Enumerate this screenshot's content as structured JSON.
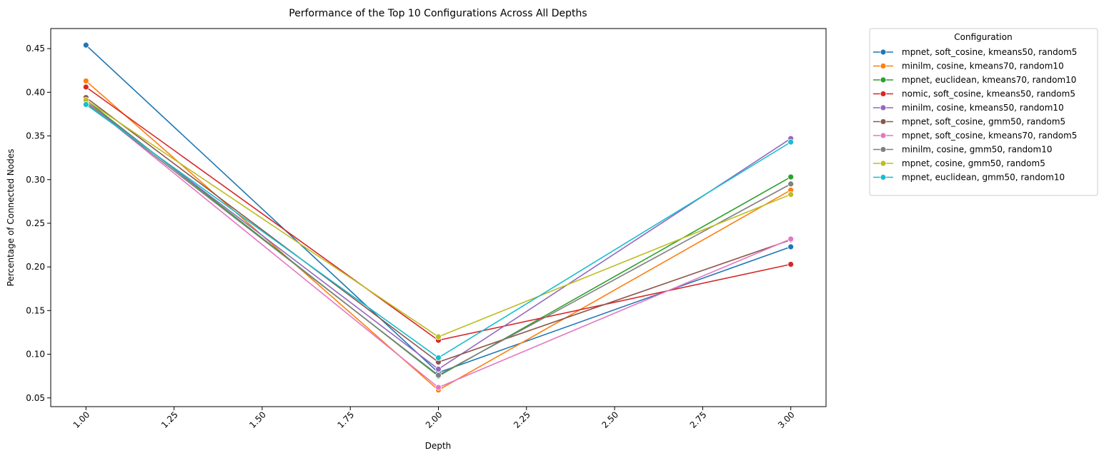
{
  "chart_data": {
    "type": "line",
    "title": "Performance of the Top 10 Configurations Across All Depths",
    "xlabel": "Depth",
    "ylabel": "Percentage of Connected Nodes",
    "x": [
      1.0,
      2.0,
      3.0
    ],
    "xlim": [
      0.9,
      3.1
    ],
    "ylim": [
      0.04,
      0.473
    ],
    "xticks": [
      "1.00",
      "1.25",
      "1.50",
      "1.75",
      "2.00",
      "2.25",
      "2.50",
      "2.75",
      "3.00"
    ],
    "xtick_values": [
      1.0,
      1.25,
      1.5,
      1.75,
      2.0,
      2.25,
      2.5,
      2.75,
      3.0
    ],
    "yticks": [
      "0.05",
      "0.10",
      "0.15",
      "0.20",
      "0.25",
      "0.30",
      "0.35",
      "0.40",
      "0.45"
    ],
    "ytick_values": [
      0.05,
      0.1,
      0.15,
      0.2,
      0.25,
      0.3,
      0.35,
      0.4,
      0.45
    ],
    "grid": false,
    "legend": {
      "title": "Configuration",
      "placement": "outside-right"
    },
    "series": [
      {
        "name": "mpnet, soft_cosine, kmeans50, random5",
        "color": "#1f77b4",
        "values": [
          0.454,
          0.079,
          0.223
        ]
      },
      {
        "name": "minilm, cosine, kmeans70, random10",
        "color": "#ff7f0e",
        "values": [
          0.413,
          0.059,
          0.288
        ]
      },
      {
        "name": "mpnet, euclidean, kmeans70, random10",
        "color": "#2ca02c",
        "values": [
          0.391,
          0.075,
          0.303
        ]
      },
      {
        "name": "nomic, soft_cosine, kmeans50, random5",
        "color": "#d62728",
        "values": [
          0.406,
          0.116,
          0.203
        ]
      },
      {
        "name": "minilm, cosine, kmeans50, random10",
        "color": "#9467bd",
        "values": [
          0.389,
          0.083,
          0.347
        ]
      },
      {
        "name": "mpnet, soft_cosine, gmm50, random5",
        "color": "#8c564b",
        "values": [
          0.394,
          0.091,
          0.231
        ]
      },
      {
        "name": "mpnet, soft_cosine, kmeans70, random5",
        "color": "#e377c2",
        "values": [
          0.389,
          0.062,
          0.232
        ]
      },
      {
        "name": "minilm, cosine, gmm50, random10",
        "color": "#7f7f7f",
        "values": [
          0.388,
          0.076,
          0.295
        ]
      },
      {
        "name": "mpnet, cosine, gmm50, random5",
        "color": "#bcbd22",
        "values": [
          0.391,
          0.12,
          0.283
        ]
      },
      {
        "name": "mpnet, euclidean, gmm50, random10",
        "color": "#17becf",
        "values": [
          0.386,
          0.096,
          0.343
        ]
      }
    ]
  }
}
